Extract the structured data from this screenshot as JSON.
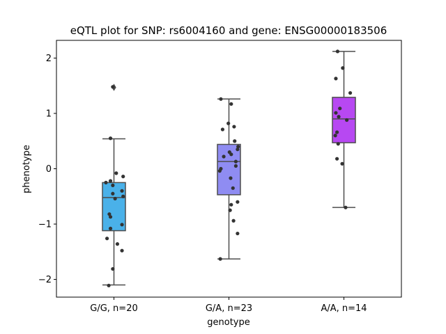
{
  "chart_data": {
    "type": "box",
    "title": "eQTL plot for SNP: rs6004160 and gene: ENSG00000183506",
    "xlabel": "genotype",
    "ylabel": "phenotype",
    "categories": [
      "G/G, n=20",
      "G/A, n=23",
      "A/A, n=14"
    ],
    "ylim": [
      -2.32,
      2.32
    ],
    "yticks": [
      -2,
      -1,
      0,
      1,
      2
    ],
    "grid": false,
    "colors": [
      "#4AB1E9",
      "#8F8CF2",
      "#B748F2"
    ],
    "box_edge_color": "#4d4d4d",
    "point_color": "#333333",
    "boxes": [
      {
        "name": "G/G, n=20",
        "whisker_low": -2.1,
        "q1": -1.12,
        "median": -0.52,
        "q3": -0.25,
        "whisker_high": 0.54,
        "outliers": [
          1.47
        ],
        "points": [
          {
            "x": -0.02,
            "y": 1.48
          },
          {
            "x": -0.06,
            "y": 0.55
          },
          {
            "x": 0.04,
            "y": -0.08
          },
          {
            "x": 0.16,
            "y": -0.14
          },
          {
            "x": -0.14,
            "y": -0.25
          },
          {
            "x": -0.06,
            "y": -0.22
          },
          {
            "x": -0.02,
            "y": -0.3
          },
          {
            "x": 0.14,
            "y": -0.4
          },
          {
            "x": -0.02,
            "y": -0.45
          },
          {
            "x": 0.16,
            "y": -0.5
          },
          {
            "x": 0.02,
            "y": -0.54
          },
          {
            "x": -0.08,
            "y": -0.82
          },
          {
            "x": -0.06,
            "y": -0.87
          },
          {
            "x": 0.14,
            "y": -1.01
          },
          {
            "x": -0.06,
            "y": -1.08
          },
          {
            "x": -0.12,
            "y": -1.26
          },
          {
            "x": 0.06,
            "y": -1.36
          },
          {
            "x": 0.14,
            "y": -1.48
          },
          {
            "x": -0.02,
            "y": -1.81
          },
          {
            "x": -0.09,
            "y": -2.11
          }
        ]
      },
      {
        "name": "G/A, n=23",
        "whisker_low": -1.63,
        "q1": -0.47,
        "median": 0.13,
        "q3": 0.44,
        "whisker_high": 1.26,
        "outliers": [],
        "points": [
          {
            "x": -0.14,
            "y": 1.26
          },
          {
            "x": 0.04,
            "y": 1.17
          },
          {
            "x": -0.01,
            "y": 0.82
          },
          {
            "x": 0.09,
            "y": 0.76
          },
          {
            "x": -0.11,
            "y": 0.71
          },
          {
            "x": 0.1,
            "y": 0.5
          },
          {
            "x": 0.16,
            "y": 0.4
          },
          {
            "x": 0.15,
            "y": 0.35
          },
          {
            "x": 0.01,
            "y": 0.3
          },
          {
            "x": 0.04,
            "y": 0.26
          },
          {
            "x": -0.09,
            "y": 0.22
          },
          {
            "x": 0.12,
            "y": 0.13
          },
          {
            "x": 0.12,
            "y": 0.05
          },
          {
            "x": -0.14,
            "y": 0.0
          },
          {
            "x": -0.16,
            "y": -0.04
          },
          {
            "x": 0.03,
            "y": -0.17
          },
          {
            "x": 0.07,
            "y": -0.35
          },
          {
            "x": 0.15,
            "y": -0.6
          },
          {
            "x": 0.04,
            "y": -0.65
          },
          {
            "x": 0.02,
            "y": -0.75
          },
          {
            "x": 0.08,
            "y": -0.94
          },
          {
            "x": 0.15,
            "y": -1.17
          },
          {
            "x": -0.15,
            "y": -1.63
          }
        ]
      },
      {
        "name": "A/A, n=14",
        "whisker_low": -0.7,
        "q1": 0.47,
        "median": 0.9,
        "q3": 1.29,
        "whisker_high": 2.12,
        "outliers": [],
        "points": [
          {
            "x": -0.11,
            "y": 2.12
          },
          {
            "x": -0.02,
            "y": 1.82
          },
          {
            "x": -0.14,
            "y": 1.63
          },
          {
            "x": 0.11,
            "y": 1.37
          },
          {
            "x": -0.07,
            "y": 1.09
          },
          {
            "x": -0.14,
            "y": 1.01
          },
          {
            "x": -0.09,
            "y": 0.94
          },
          {
            "x": 0.05,
            "y": 0.88
          },
          {
            "x": -0.12,
            "y": 0.66
          },
          {
            "x": -0.15,
            "y": 0.6
          },
          {
            "x": -0.1,
            "y": 0.45
          },
          {
            "x": -0.12,
            "y": 0.18
          },
          {
            "x": -0.03,
            "y": 0.09
          },
          {
            "x": 0.03,
            "y": -0.7
          }
        ]
      }
    ]
  }
}
